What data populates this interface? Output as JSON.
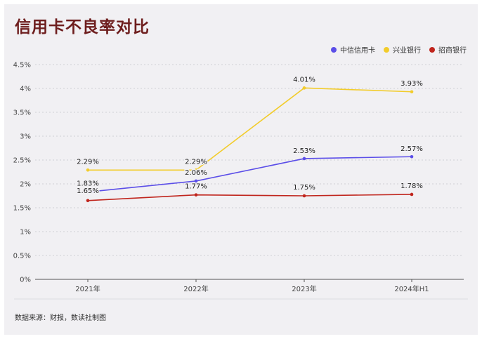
{
  "title": "信用卡不良率对比",
  "source": "数据来源：财报，数读社制图",
  "chart_data": {
    "type": "line",
    "categories": [
      "2021年",
      "2022年",
      "2023年",
      "2024年H1"
    ],
    "y_ticks": [
      "0%",
      "0.5%",
      "1%",
      "1.5%",
      "2%",
      "2.5%",
      "3%",
      "3.5%",
      "4%",
      "4.5%"
    ],
    "ylim": [
      0,
      4.5
    ],
    "grid": true,
    "legend_position": "top-right",
    "series": [
      {
        "name": "中信信用卡",
        "color": "#5b4ee8",
        "values": [
          1.83,
          2.06,
          2.53,
          2.57
        ],
        "labels": [
          "1.83%",
          "2.06%",
          "2.53%",
          "2.57%"
        ]
      },
      {
        "name": "兴业银行",
        "color": "#f2cc2b",
        "values": [
          2.29,
          2.29,
          4.01,
          3.93
        ],
        "labels": [
          "2.29%",
          "2.29%",
          "4.01%",
          "3.93%"
        ]
      },
      {
        "name": "招商银行",
        "color": "#c0251d",
        "values": [
          1.65,
          1.77,
          1.75,
          1.78
        ],
        "labels": [
          "1.65%",
          "1.77%",
          "1.75%",
          "1.78%"
        ]
      }
    ]
  }
}
